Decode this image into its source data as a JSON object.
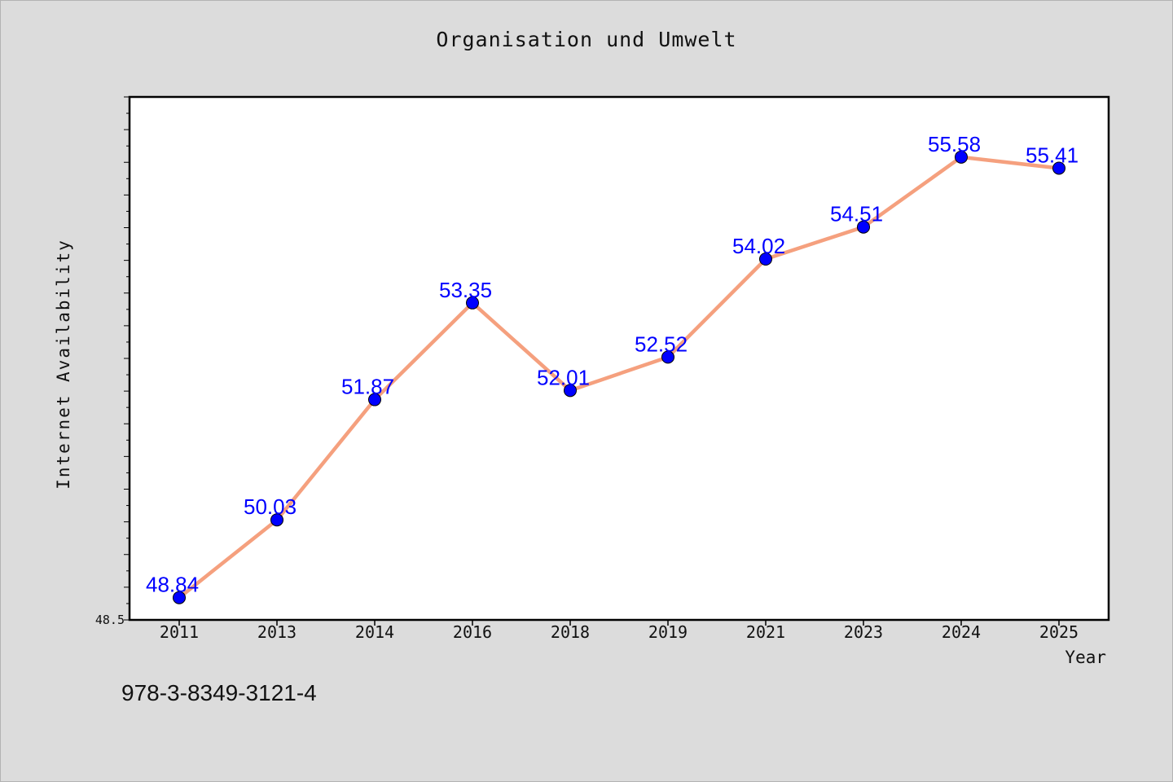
{
  "chart_data": {
    "type": "line",
    "title": "Organisation und Umwelt",
    "xlabel": "Year",
    "ylabel": "Internet Availability",
    "categories": [
      "2011",
      "2013",
      "2014",
      "2016",
      "2018",
      "2019",
      "2021",
      "2023",
      "2024",
      "2025"
    ],
    "series": [
      {
        "values": [
          48.84,
          50.03,
          51.87,
          53.35,
          52.01,
          52.52,
          54.02,
          54.51,
          55.58,
          55.41
        ],
        "labels": [
          "48.84",
          "50.03",
          "51.87",
          "53.35",
          "52.01",
          "52.52",
          "54.02",
          "54.51",
          "55.58",
          "55.41"
        ]
      }
    ],
    "yticks": [
      {
        "value": 48.5,
        "label": "48.5"
      }
    ],
    "ylim": [
      48.5,
      56.5
    ],
    "colors": {
      "line": "#f5a07e",
      "marker": "#0000ff",
      "label": "#0000ff",
      "plot_bg": "#ffffff",
      "page_bg": "#dcdcdc"
    },
    "grid": false,
    "legend": "none"
  },
  "footer": {
    "code": "978-3-8349-3121-4"
  }
}
